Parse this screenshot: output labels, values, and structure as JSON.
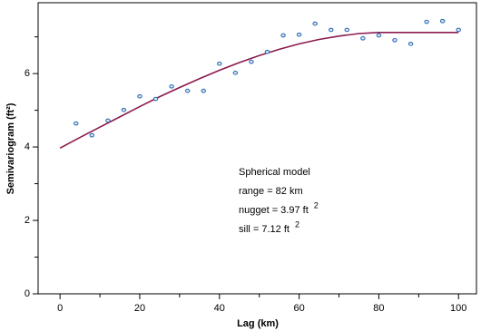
{
  "chart_data": {
    "type": "scatter",
    "xlabel": "Lag (km)",
    "ylabel": "Semivariogram (ft²)",
    "xlim": [
      -5.5,
      104.5
    ],
    "ylim": [
      0,
      7.93
    ],
    "xticks": [
      0,
      20,
      40,
      60,
      80,
      100
    ],
    "xminorticks": [
      10,
      30,
      50,
      70,
      90
    ],
    "yticks": [
      0,
      2,
      4,
      6
    ],
    "yminorticks": [
      1,
      3,
      5,
      7
    ],
    "points": {
      "color": "#2f6db5",
      "x": [
        4,
        8,
        12,
        16,
        20,
        24,
        28,
        32,
        36,
        40,
        44,
        48,
        52,
        56,
        60,
        64,
        68,
        72,
        76,
        80,
        84,
        88,
        92,
        96,
        100
      ],
      "values": [
        4.64,
        4.32,
        4.72,
        5.01,
        5.38,
        5.31,
        5.65,
        5.53,
        5.53,
        6.27,
        6.02,
        6.32,
        6.59,
        7.04,
        7.06,
        7.36,
        7.19,
        7.19,
        6.96,
        7.04,
        6.91,
        6.81,
        7.41,
        7.43,
        7.19
      ]
    },
    "model_line": {
      "color": "#8b1a4f",
      "x": [
        0,
        5,
        10,
        15,
        20,
        25,
        30,
        35,
        40,
        45,
        50,
        55,
        60,
        65,
        70,
        75,
        80,
        82,
        85,
        90,
        95,
        100
      ],
      "values": [
        3.97,
        4.26,
        4.54,
        4.82,
        5.1,
        5.37,
        5.62,
        5.86,
        6.09,
        6.3,
        6.49,
        6.66,
        6.81,
        6.93,
        7.02,
        7.09,
        7.12,
        7.12,
        7.12,
        7.12,
        7.12,
        7.12
      ]
    },
    "annotations": [
      {
        "text": "Spherical model"
      },
      {
        "text": "range = 82 km"
      },
      {
        "text": "nugget = 3.97 ft",
        "sup": "2"
      },
      {
        "text": "sill = 7.12 ft",
        "sup": "2"
      }
    ]
  }
}
